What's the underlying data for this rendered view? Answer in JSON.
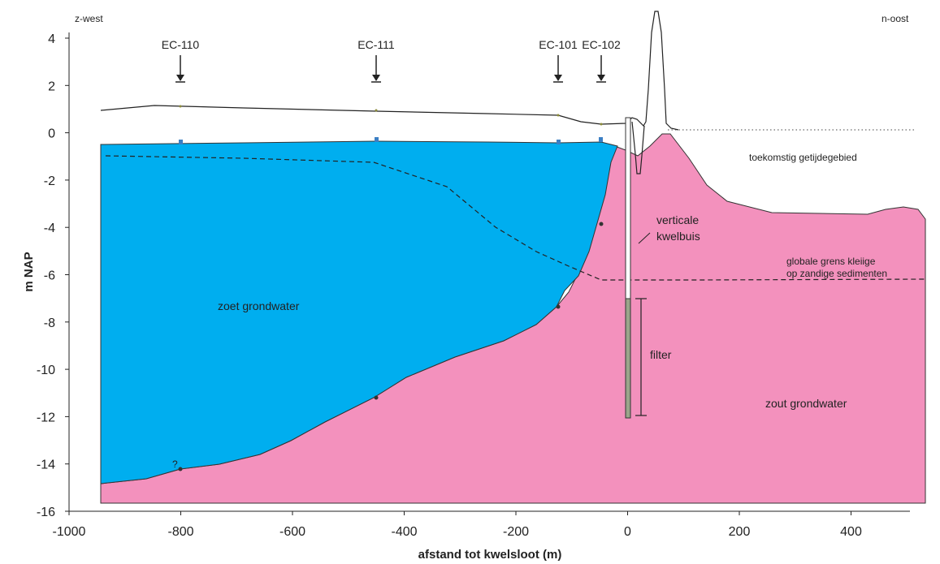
{
  "diagram": {
    "corner_left": "z-west",
    "corner_right": "n-oost",
    "y_axis_label": "m NAP",
    "x_axis_label": "afstand tot kwelsloot (m)",
    "x_ticks": [
      "-1000",
      "-800",
      "-600",
      "-400",
      "-200",
      "0",
      "200",
      "400"
    ],
    "y_ticks": [
      "4",
      "2",
      "0",
      "-2",
      "-4",
      "-6",
      "-8",
      "-10",
      "-12",
      "-14",
      "-16"
    ],
    "wells": [
      "EC-110",
      "EC-111",
      "EC-101",
      "EC-102"
    ],
    "labels": {
      "fresh": "zoet grondwater",
      "salt": "zout grondwater",
      "tidal": "toekomstig getijdegebied",
      "pipe_1": "verticale",
      "pipe_2": "kwelbuis",
      "boundary_1": "globale grens kleiige",
      "boundary_2": "op zandige sedimenten",
      "filter": "filter",
      "question": "?"
    },
    "colors": {
      "fresh_water": "#00aeef",
      "salt_water": "#f391bd",
      "line": "#222222"
    }
  }
}
